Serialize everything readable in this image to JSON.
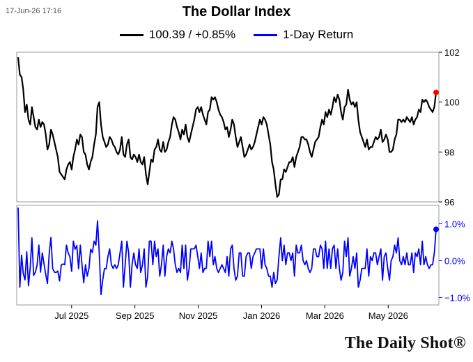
{
  "timestamp": "17-Jun-26 17:16",
  "watermark": "The Daily Shot®",
  "chart_data": {
    "type": "line",
    "title": "The Dollar Index",
    "legend": [
      {
        "label": "100.39 / +0.85%",
        "color": "#000000"
      },
      {
        "label": "1-Day Return",
        "color": "#0000ff"
      }
    ],
    "legend_position": "top",
    "x_tick_labels": [
      "Jul 2025",
      "Sep 2025",
      "Nov 2025",
      "Jan 2026",
      "Mar 2026",
      "May 2026"
    ],
    "top_panel": {
      "series_name": "100.39 / +0.85%",
      "color": "#000000",
      "ylim": [
        96,
        102
      ],
      "y_ticks": [
        96,
        98,
        100,
        102
      ],
      "y_tick_labels": [
        "96",
        "98",
        "100",
        "102"
      ],
      "last_value": 100.39,
      "last_marker_color": "#ff0000",
      "values": [
        101.8,
        101.1,
        101.0,
        100.5,
        99.6,
        99.9,
        99.3,
        99.1,
        99.8,
        99.4,
        99.0,
        98.9,
        99.3,
        99.0,
        99.2,
        99.1,
        98.7,
        98.1,
        98.3,
        98.9,
        98.7,
        98.4,
        98.1,
        97.8,
        97.2,
        97.1,
        97.0,
        96.9,
        97.3,
        97.5,
        97.6,
        97.3,
        97.8,
        98.1,
        98.5,
        98.3,
        98.7,
        98.6,
        98.0,
        97.9,
        97.5,
        97.3,
        97.6,
        97.8,
        98.3,
        98.7,
        99.8,
        100.0,
        99.1,
        98.6,
        98.4,
        98.2,
        98.3,
        98.6,
        98.5,
        98.3,
        98.2,
        98.0,
        97.9,
        98.1,
        98.6,
        97.9,
        97.8,
        98.3,
        98.5,
        97.8,
        97.7,
        97.9,
        97.8,
        97.6,
        97.9,
        97.6,
        97.5,
        97.8,
        97.1,
        96.7,
        97.2,
        97.7,
        97.6,
        98.1,
        98.2,
        98.5,
        98.1,
        98.0,
        98.4,
        98.0,
        98.1,
        98.4,
        98.6,
        99.1,
        99.4,
        99.3,
        99.0,
        98.8,
        98.5,
        98.9,
        98.7,
        99.1,
        98.6,
        98.4,
        98.7,
        99.0,
        99.3,
        99.7,
        99.8,
        99.6,
        99.8,
        99.5,
        99.3,
        99.1,
        99.6,
        99.7,
        100.2,
        100.1,
        100.2,
        100.0,
        99.7,
        99.5,
        99.4,
        99.2,
        98.9,
        99.0,
        98.6,
        98.9,
        99.3,
        99.1,
        98.6,
        98.2,
        98.4,
        98.6,
        98.2,
        97.8,
        97.9,
        98.1,
        98.3,
        98.1,
        98.2,
        98.4,
        98.7,
        99.0,
        99.3,
        99.1,
        99.4,
        99.3,
        99.1,
        98.7,
        98.3,
        97.6,
        97.3,
        96.7,
        96.2,
        96.3,
        96.9,
        96.9,
        97.3,
        97.2,
        97.4,
        97.6,
        97.6,
        97.8,
        97.4,
        97.8,
        98.0,
        98.2,
        98.6,
        98.6,
        98.5,
        98.5,
        98.3,
        98.0,
        97.8,
        98.1,
        98.4,
        98.5,
        98.6,
        99.0,
        99.3,
        99.1,
        99.6,
        99.4,
        99.7,
        99.5,
        99.8,
        100.2,
        100.0,
        100.3,
        100.1,
        99.6,
        99.3,
        99.8,
        99.9,
        100.5,
        100.1,
        99.9,
        100.0,
        99.8,
        100.0,
        99.3,
        98.8,
        98.6,
        98.4,
        98.2,
        98.5,
        98.1,
        98.2,
        98.2,
        98.4,
        98.6,
        98.5,
        98.6,
        98.9,
        98.4,
        98.5,
        98.7,
        98.5,
        98.0,
        98.0,
        98.1,
        98.5,
        98.7,
        99.3,
        99.3,
        99.2,
        99.3,
        99.2,
        99.4,
        99.3,
        99.2,
        99.4,
        99.1,
        99.3,
        99.4,
        99.7,
        99.6,
        100.1,
        100.0,
        100.1,
        100.0,
        99.8,
        99.7,
        99.6,
        99.8,
        100.39
      ],
      "gaps_indices": []
    },
    "bottom_panel": {
      "series_name": "1-Day Return",
      "color": "#0000ff",
      "ylim": [
        -1.2,
        1.5
      ],
      "y_ticks": [
        -1.0,
        0.0,
        1.0
      ],
      "y_tick_labels": [
        "−1.0%",
        "0.0%",
        "1.0%"
      ],
      "last_value": 0.85,
      "last_marker_color": "#0000ff",
      "values": [
        1.44,
        -0.72,
        0.15,
        -0.35,
        -0.52,
        0.24,
        -0.68,
        -0.18,
        0.62,
        -0.4,
        -0.31,
        -0.11,
        0.42,
        -0.31,
        0.21,
        -0.09,
        -0.38,
        -0.62,
        0.19,
        0.63,
        -0.21,
        -0.31,
        -0.32,
        -0.28,
        -0.55,
        -0.11,
        -0.09,
        -0.11,
        0.42,
        0.21,
        0.1,
        -0.29,
        0.53,
        0.31,
        0.41,
        -0.22,
        0.42,
        -0.11,
        -0.6,
        -0.11,
        -0.42,
        -0.21,
        0.31,
        0.22,
        0.53,
        0.42,
        1.08,
        0.2,
        -0.92,
        -0.52,
        -0.21,
        -0.22,
        0.11,
        0.32,
        -0.11,
        -0.21,
        -0.11,
        -0.21,
        -0.11,
        0.21,
        0.53,
        -0.72,
        -0.11,
        0.53,
        0.21,
        -0.72,
        -0.11,
        0.21,
        -0.11,
        -0.21,
        0.32,
        -0.32,
        -0.11,
        0.32,
        -0.72,
        -0.42,
        0.53,
        0.53,
        -0.11,
        0.53,
        0.11,
        0.32,
        -0.42,
        -0.11,
        0.42,
        -0.42,
        0.11,
        0.32,
        0.21,
        0.53,
        0.32,
        -0.11,
        -0.32,
        -0.21,
        -0.32,
        0.42,
        -0.21,
        0.42,
        -0.53,
        -0.21,
        0.32,
        0.32,
        0.32,
        0.42,
        0.11,
        -0.21,
        0.21,
        -0.32,
        -0.21,
        -0.21,
        0.53,
        0.11,
        0.53,
        -0.11,
        0.11,
        -0.21,
        -0.32,
        -0.21,
        -0.11,
        -0.21,
        -0.32,
        0.11,
        -0.42,
        0.32,
        0.42,
        -0.21,
        -0.53,
        -0.42,
        0.21,
        0.21,
        -0.42,
        -0.42,
        0.11,
        0.21,
        0.21,
        -0.21,
        0.11,
        0.21,
        0.32,
        0.32,
        0.32,
        -0.21,
        0.32,
        -0.11,
        -0.21,
        -0.42,
        -0.42,
        -0.72,
        -0.32,
        -0.62,
        -0.52,
        0.11,
        0.62,
        0.0,
        0.42,
        -0.11,
        0.21,
        0.21,
        0.0,
        0.21,
        -0.42,
        0.42,
        0.21,
        0.21,
        0.42,
        0.0,
        -0.11,
        0.0,
        -0.21,
        -0.32,
        -0.21,
        0.32,
        0.32,
        0.11,
        0.11,
        0.42,
        0.32,
        -0.21,
        0.53,
        -0.21,
        0.32,
        -0.21,
        0.32,
        0.42,
        -0.21,
        0.32,
        -0.21,
        -0.53,
        -0.32,
        0.53,
        0.11,
        0.62,
        -0.42,
        -0.21,
        0.11,
        -0.21,
        0.21,
        -0.72,
        -0.53,
        -0.21,
        -0.21,
        -0.21,
        0.32,
        -0.42,
        0.11,
        0.0,
        0.21,
        0.21,
        -0.11,
        0.11,
        0.32,
        -0.53,
        0.11,
        0.21,
        -0.21,
        -0.53,
        0.0,
        0.11,
        0.42,
        0.21,
        0.62,
        0.0,
        -0.11,
        0.11,
        -0.11,
        0.21,
        -0.11,
        -0.11,
        0.21,
        -0.32,
        0.21,
        0.11,
        0.32,
        -0.11,
        0.53,
        -0.11,
        0.11,
        -0.11,
        -0.21,
        -0.11,
        -0.11,
        0.21,
        0.85
      ]
    }
  }
}
